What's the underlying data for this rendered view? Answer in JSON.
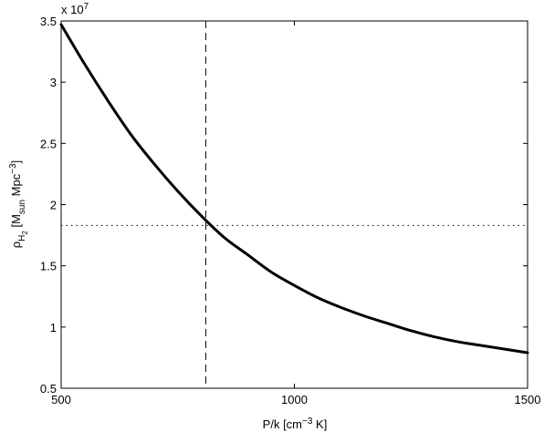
{
  "chart_data": {
    "type": "line",
    "title": "",
    "xlabel": {
      "base": "P/k [cm",
      "sup": "−3",
      "tail": " K]"
    },
    "ylabel": {
      "rho": "ρ",
      "rho_sub": "H",
      "rho_subsub": "2",
      "bracket": " [M",
      "msun_sub": "sun",
      "mpc": " Mpc",
      "mpc_sup": "−3",
      "close": "]"
    },
    "y_multiplier": {
      "text": "x 10",
      "exp": "7"
    },
    "xlim": [
      500,
      1500
    ],
    "ylim": [
      0.5,
      3.5
    ],
    "x_ticks": [
      500,
      1000,
      1500
    ],
    "x_tick_labels": [
      "500",
      "1000",
      "1500"
    ],
    "y_ticks": [
      0.5,
      1,
      1.5,
      2,
      2.5,
      3,
      3.5
    ],
    "y_tick_labels": [
      "0.5",
      "1",
      "1.5",
      "2",
      "2.5",
      "3",
      "3.5"
    ],
    "grid": false,
    "series": [
      {
        "x": [
          500,
          550,
          600,
          650,
          700,
          750,
          800,
          850,
          900,
          950,
          1000,
          1050,
          1100,
          1150,
          1200,
          1250,
          1300,
          1350,
          1400,
          1450,
          1500
        ],
        "values": [
          3.47,
          3.15,
          2.85,
          2.57,
          2.33,
          2.11,
          1.91,
          1.73,
          1.59,
          1.45,
          1.34,
          1.24,
          1.16,
          1.09,
          1.03,
          0.97,
          0.92,
          0.88,
          0.85,
          0.82,
          0.79
        ]
      }
    ],
    "reference_lines": [
      {
        "orientation": "vertical",
        "value": 810,
        "style": "dashed"
      },
      {
        "orientation": "horizontal",
        "value": 1.83,
        "style": "dotted"
      }
    ],
    "colors": {
      "line": "#000000",
      "axes": "#000000",
      "background": "#ffffff"
    }
  }
}
